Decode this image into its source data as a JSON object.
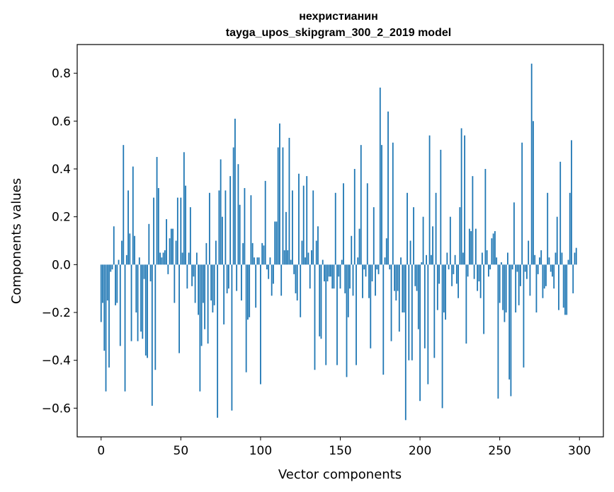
{
  "chart_data": {
    "type": "bar",
    "title_line1": "нехристианин",
    "title_line2": "tayga_upos_skipgram_300_2_2019 model",
    "xlabel": "Vector components",
    "ylabel": "Components values",
    "xlim": [
      -15,
      315
    ],
    "ylim": [
      -0.72,
      0.92
    ],
    "xticks": [
      0,
      50,
      100,
      150,
      200,
      250,
      300
    ],
    "xtick_labels": [
      "0",
      "50",
      "100",
      "150",
      "200",
      "250",
      "300"
    ],
    "yticks": [
      -0.6,
      -0.4,
      -0.2,
      0.0,
      0.2,
      0.4,
      0.6,
      0.8
    ],
    "ytick_labels": [
      "−0.6",
      "−0.4",
      "−0.2",
      "0.0",
      "0.2",
      "0.4",
      "0.6",
      "0.8"
    ],
    "bar_color": "#1f77b4",
    "values": [
      -0.24,
      -0.16,
      -0.36,
      -0.53,
      -0.15,
      -0.43,
      -0.03,
      -0.02,
      0.16,
      -0.17,
      -0.16,
      0.02,
      -0.34,
      0.1,
      0.5,
      -0.53,
      0.04,
      0.31,
      0.13,
      -0.32,
      0.41,
      0.12,
      -0.2,
      -0.32,
      0.03,
      -0.28,
      -0.31,
      -0.06,
      -0.38,
      -0.39,
      0.17,
      -0.07,
      -0.59,
      0.28,
      -0.44,
      0.45,
      0.32,
      0.05,
      0.03,
      0.05,
      0.06,
      0.19,
      -0.04,
      0.11,
      0.15,
      0.15,
      -0.16,
      0.1,
      0.28,
      -0.37,
      0.28,
      0.05,
      0.47,
      0.33,
      -0.1,
      0.05,
      0.24,
      -0.09,
      -0.05,
      -0.16,
      0.05,
      -0.21,
      -0.53,
      -0.34,
      -0.16,
      -0.27,
      0.09,
      -0.33,
      0.3,
      -0.15,
      -0.2,
      -0.17,
      0.1,
      -0.64,
      0.31,
      0.44,
      0.2,
      -0.25,
      0.31,
      -0.12,
      -0.1,
      0.37,
      -0.61,
      0.49,
      0.61,
      -0.11,
      0.42,
      0.25,
      -0.15,
      0.09,
      0.32,
      -0.45,
      -0.23,
      -0.22,
      0.29,
      0.09,
      0.03,
      -0.18,
      0.03,
      0.03,
      -0.5,
      0.09,
      0.08,
      0.35,
      -0.02,
      -0.06,
      0.03,
      -0.13,
      -0.08,
      0.18,
      0.18,
      0.49,
      0.59,
      -0.13,
      0.49,
      0.06,
      0.22,
      0.06,
      0.53,
      0.02,
      0.31,
      -0.04,
      -0.12,
      -0.15,
      0.38,
      -0.22,
      0.1,
      0.33,
      0.03,
      0.37,
      0.05,
      -0.1,
      0.06,
      0.31,
      -0.44,
      0.1,
      0.16,
      -0.3,
      -0.31,
      0.02,
      -0.07,
      -0.42,
      -0.07,
      -0.05,
      -0.05,
      -0.1,
      -0.1,
      0.3,
      -0.42,
      -0.05,
      -0.1,
      0.02,
      0.34,
      -0.12,
      -0.47,
      -0.22,
      -0.1,
      0.12,
      -0.13,
      0.4,
      -0.42,
      0.03,
      0.15,
      0.5,
      -0.14,
      -0.02,
      -0.05,
      0.34,
      -0.14,
      -0.35,
      -0.07,
      0.24,
      -0.13,
      -0.02,
      -0.04,
      0.74,
      0.5,
      -0.46,
      0.03,
      0.11,
      0.64,
      -0.02,
      -0.32,
      0.51,
      -0.11,
      -0.15,
      -0.11,
      -0.28,
      0.03,
      -0.2,
      -0.2,
      -0.65,
      0.3,
      -0.4,
      0.1,
      -0.4,
      0.24,
      -0.09,
      -0.11,
      -0.27,
      -0.57,
      0.01,
      0.2,
      -0.35,
      0.04,
      -0.5,
      0.54,
      0.04,
      0.16,
      -0.39,
      0.3,
      -0.19,
      -0.08,
      0.48,
      -0.6,
      -0.2,
      -0.23,
      0.05,
      -0.02,
      0.2,
      -0.09,
      -0.04,
      0.04,
      -0.08,
      -0.14,
      0.24,
      0.57,
      0.05,
      0.54,
      -0.33,
      -0.05,
      0.15,
      0.14,
      0.37,
      -0.06,
      0.15,
      -0.11,
      -0.07,
      -0.14,
      0.05,
      -0.29,
      0.4,
      0.06,
      -0.05,
      -0.02,
      0.11,
      0.13,
      0.14,
      0.03,
      -0.56,
      -0.16,
      0.01,
      -0.19,
      -0.24,
      -0.2,
      0.05,
      -0.48,
      -0.55,
      -0.02,
      0.26,
      -0.2,
      -0.03,
      -0.17,
      -0.09,
      0.51,
      -0.43,
      -0.03,
      -0.06,
      0.1,
      -0.13,
      0.84,
      0.6,
      0.04,
      -0.2,
      -0.04,
      0.03,
      0.06,
      -0.14,
      -0.1,
      -0.09,
      0.3,
      0.03,
      -0.03,
      -0.05,
      -0.1,
      0.05,
      0.2,
      -0.19,
      0.43,
      0.05,
      -0.18,
      -0.21,
      -0.21,
      0.02,
      0.3,
      0.52,
      -0.12,
      0.05,
      0.07
    ]
  }
}
